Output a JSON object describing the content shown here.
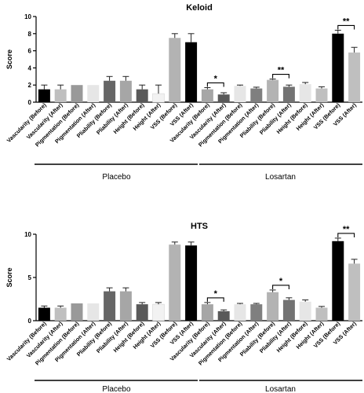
{
  "chart_data": [
    {
      "type": "bar",
      "title": "Keloid",
      "ylabel": "Score",
      "ylim": [
        0,
        10
      ],
      "yticks": [
        0,
        2,
        4,
        6,
        8,
        10
      ],
      "categories": [
        "Vascularity (Before)",
        "Vascularity (After)",
        "Pigmentation (Before)",
        "Pigmentation (After)",
        "Pliability (Before)",
        "Pliability (After)",
        "Height (Before)",
        "Height (After)",
        "VSS (Before)",
        "VSS (After)",
        "Vascularity (Before)",
        "Vascularity (After)",
        "Pigmentation (Before)",
        "Pigmentation (After)",
        "Pliability (Before)",
        "Pliability (After)",
        "Height (Before)",
        "Height (After)",
        "VSS (Before)",
        "VSS (After)"
      ],
      "values": [
        1.5,
        1.5,
        2.0,
        2.0,
        2.5,
        2.5,
        1.5,
        1.0,
        7.5,
        7.0,
        1.5,
        0.9,
        1.9,
        1.6,
        2.6,
        1.8,
        2.1,
        1.6,
        8.0,
        5.8
      ],
      "errors": [
        0.5,
        0.5,
        0.0,
        0.0,
        0.5,
        0.5,
        0.5,
        1.0,
        0.5,
        1.0,
        0.2,
        0.2,
        0.1,
        0.15,
        0.1,
        0.2,
        0.2,
        0.2,
        0.4,
        0.6
      ],
      "colors": [
        "#000000",
        "#bfbfbf",
        "#999999",
        "#e6e6e6",
        "#666666",
        "#a6a6a6",
        "#595959",
        "#f2f2f2",
        "#b3b3b3",
        "#000000",
        "#a6a6a6",
        "#595959",
        "#e6e6e6",
        "#7f7f7f",
        "#b3b3b3",
        "#737373",
        "#e6e6e6",
        "#bfbfbf",
        "#000000",
        "#bfbfbf"
      ],
      "groups": [
        "Placebo",
        "Losartan"
      ],
      "significance": [
        {
          "from": 10,
          "to": 11,
          "label": "*"
        },
        {
          "from": 14,
          "to": 15,
          "label": "**"
        },
        {
          "from": 18,
          "to": 19,
          "label": "**"
        }
      ]
    },
    {
      "type": "bar",
      "title": "HTS",
      "ylabel": "Score",
      "ylim": [
        0,
        10
      ],
      "yticks": [
        0,
        5,
        10
      ],
      "categories": [
        "Vascularity (Before)",
        "Vascularity (After)",
        "Pigmentation (Before)",
        "Pigmentation (After)",
        "Pliability (Before)",
        "Pliability (After)",
        "Height (Before)",
        "Height (After)",
        "VSS (Before)",
        "VSS (After)",
        "Vascularity (Before)",
        "Vascularity (After)",
        "Pigmentation (Before)",
        "Pigmentation (After)",
        "Pliability (Before)",
        "Pliability (After)",
        "Height (Before)",
        "Height (After)",
        "VSS (Before)",
        "VSS (After)"
      ],
      "values": [
        1.5,
        1.5,
        2.0,
        2.0,
        3.4,
        3.4,
        1.9,
        1.9,
        8.8,
        8.7,
        1.9,
        1.1,
        1.9,
        1.9,
        3.3,
        2.4,
        2.2,
        1.5,
        9.2,
        6.6
      ],
      "errors": [
        0.2,
        0.2,
        0.0,
        0.0,
        0.4,
        0.4,
        0.2,
        0.2,
        0.3,
        0.4,
        0.2,
        0.15,
        0.1,
        0.1,
        0.25,
        0.25,
        0.2,
        0.15,
        0.35,
        0.5
      ],
      "colors": [
        "#000000",
        "#bfbfbf",
        "#999999",
        "#e6e6e6",
        "#666666",
        "#a6a6a6",
        "#595959",
        "#f2f2f2",
        "#b3b3b3",
        "#000000",
        "#a6a6a6",
        "#595959",
        "#e6e6e6",
        "#7f7f7f",
        "#b3b3b3",
        "#737373",
        "#e6e6e6",
        "#bfbfbf",
        "#000000",
        "#bfbfbf"
      ],
      "groups": [
        "Placebo",
        "Losartan"
      ],
      "significance": [
        {
          "from": 10,
          "to": 11,
          "label": "*"
        },
        {
          "from": 14,
          "to": 15,
          "label": "*"
        },
        {
          "from": 18,
          "to": 19,
          "label": "**"
        }
      ]
    }
  ]
}
